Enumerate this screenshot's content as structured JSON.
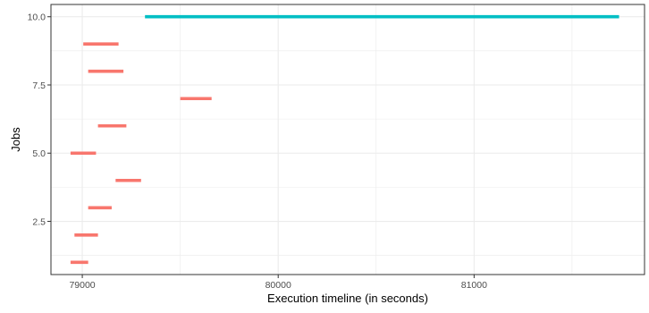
{
  "chart_data": {
    "type": "gantt",
    "title": "",
    "xlabel": "Execution timeline (in seconds)",
    "ylabel": "Jobs",
    "xlim": [
      78840,
      81870
    ],
    "ylim": [
      0.55,
      10.45
    ],
    "x_ticks": [
      {
        "value": 79000,
        "label": "79000"
      },
      {
        "value": 80000,
        "label": "80000"
      },
      {
        "value": 81000,
        "label": "81000"
      }
    ],
    "y_ticks": [
      {
        "value": 2.5,
        "label": "2.5"
      },
      {
        "value": 5.0,
        "label": "5.0"
      },
      {
        "value": 7.5,
        "label": "7.5"
      },
      {
        "value": 10.0,
        "label": "10.0"
      }
    ],
    "grid": true,
    "legend": "none",
    "colors": {
      "normal": "#F8766D",
      "highlight": "#00BFC4",
      "grid": "#EBEBEB",
      "panel_border": "#333333",
      "axis_text": "#4D4D4D",
      "axis_title": "#000000"
    },
    "jobs": [
      {
        "job": 1,
        "start": 78940,
        "end": 79030,
        "group": "normal"
      },
      {
        "job": 2,
        "start": 78960,
        "end": 79080,
        "group": "normal"
      },
      {
        "job": 3,
        "start": 79030,
        "end": 79150,
        "group": "normal"
      },
      {
        "job": 4,
        "start": 79170,
        "end": 79300,
        "group": "normal"
      },
      {
        "job": 5,
        "start": 78940,
        "end": 79070,
        "group": "normal"
      },
      {
        "job": 6,
        "start": 79080,
        "end": 79225,
        "group": "normal"
      },
      {
        "job": 7,
        "start": 79500,
        "end": 79660,
        "group": "normal"
      },
      {
        "job": 8,
        "start": 79030,
        "end": 79210,
        "group": "normal"
      },
      {
        "job": 9,
        "start": 79005,
        "end": 79185,
        "group": "normal"
      },
      {
        "job": 10,
        "start": 79320,
        "end": 81740,
        "group": "highlight"
      }
    ]
  }
}
